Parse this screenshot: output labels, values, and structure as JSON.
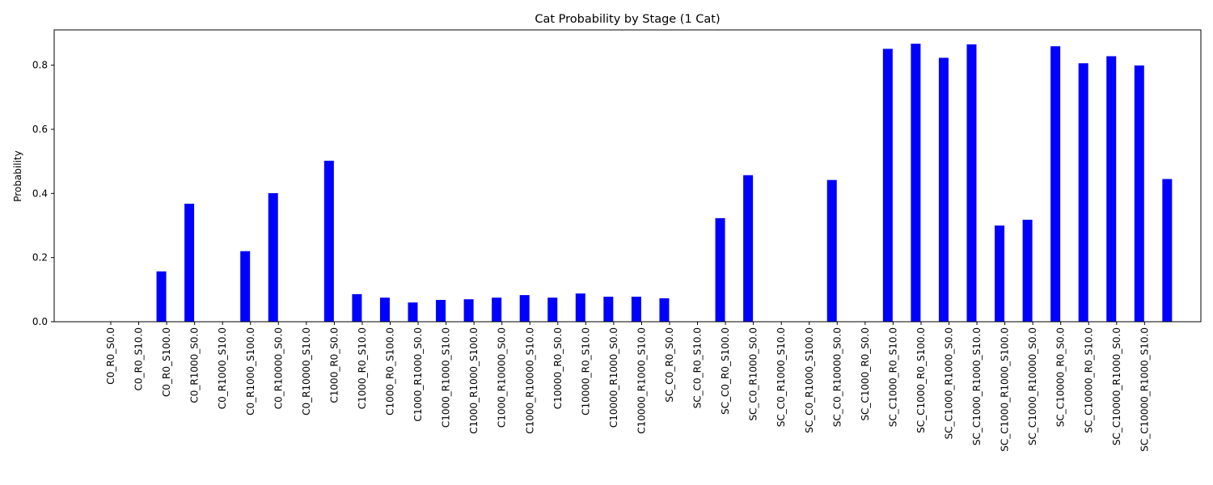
{
  "chart_data": {
    "type": "bar",
    "title": "Cat Probability by Stage (1 Cat)",
    "xlabel": "",
    "ylabel": "Probability",
    "ylim": [
      0,
      0.91
    ],
    "yticks": [
      "0.0",
      "0.2",
      "0.4",
      "0.6",
      "0.8"
    ],
    "grid": false,
    "bar_color": "#0000ff",
    "categories": [
      "C0_R0_S0.0",
      "C0_R0_S10.0",
      "C0_R0_S100.0",
      "C0_R1000_S0.0",
      "C0_R1000_S10.0",
      "C0_R1000_S100.0",
      "C0_R10000_S0.0",
      "C0_R10000_S10.0",
      "C1000_R0_S0.0",
      "C1000_R0_S10.0",
      "C1000_R0_S100.0",
      "C1000_R1000_S0.0",
      "C1000_R1000_S10.0",
      "C1000_R1000_S100.0",
      "C1000_R10000_S0.0",
      "C1000_R10000_S10.0",
      "C10000_R0_S0.0",
      "C10000_R0_S10.0",
      "C10000_R1000_S0.0",
      "C10000_R1000_S10.0",
      "SC_C0_R0_S0.0",
      "SC_C0_R0_S10.0",
      "SC_C0_R0_S100.0",
      "SC_C0_R1000_S0.0",
      "SC_C0_R1000_S10.0",
      "SC_C0_R1000_S100.0",
      "SC_C0_R10000_S0.0",
      "SC_C1000_R0_S0.0",
      "SC_C1000_R0_S10.0",
      "SC_C1000_R0_S100.0",
      "SC_C1000_R1000_S0.0",
      "SC_C1000_R1000_S10.0",
      "SC_C1000_R1000_S100.0",
      "SC_C1000_R10000_S0.0",
      "SC_C10000_R0_S0.0",
      "SC_C10000_R0_S10.0",
      "SC_C10000_R1000_S0.0",
      "SC_C10000_R1000_S10.0"
    ],
    "values": [
      0.0,
      0.157,
      0.368,
      0.0,
      0.22,
      0.401,
      0.0,
      0.502,
      0.086,
      0.075,
      0.06,
      0.068,
      0.07,
      0.075,
      0.083,
      0.075,
      0.088,
      0.078,
      0.078,
      0.073,
      0.0,
      0.323,
      0.457,
      0.0,
      0.0,
      0.442,
      0.0,
      0.851,
      0.867,
      0.823,
      0.865,
      0.3,
      0.318,
      0.859,
      0.806,
      0.828,
      0.799,
      0.445
    ]
  }
}
